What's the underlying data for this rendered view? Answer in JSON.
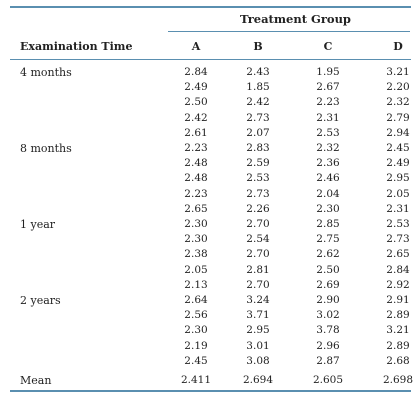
{
  "table": {
    "group_title": "Treatment Group",
    "row_header": "Examination Time",
    "columns": [
      "A",
      "B",
      "C",
      "D"
    ],
    "groups": [
      {
        "label": "4 months",
        "rows": [
          [
            "2.84",
            "2.43",
            "1.95",
            "3.21"
          ],
          [
            "2.49",
            "1.85",
            "2.67",
            "2.20"
          ],
          [
            "2.50",
            "2.42",
            "2.23",
            "2.32"
          ],
          [
            "2.42",
            "2.73",
            "2.31",
            "2.79"
          ],
          [
            "2.61",
            "2.07",
            "2.53",
            "2.94"
          ]
        ]
      },
      {
        "label": "8 months",
        "rows": [
          [
            "2.23",
            "2.83",
            "2.32",
            "2.45"
          ],
          [
            "2.48",
            "2.59",
            "2.36",
            "2.49"
          ],
          [
            "2.48",
            "2.53",
            "2.46",
            "2.95"
          ],
          [
            "2.23",
            "2.73",
            "2.04",
            "2.05"
          ],
          [
            "2.65",
            "2.26",
            "2.30",
            "2.31"
          ]
        ]
      },
      {
        "label": "1 year",
        "rows": [
          [
            "2.30",
            "2.70",
            "2.85",
            "2.53"
          ],
          [
            "2.30",
            "2.54",
            "2.75",
            "2.73"
          ],
          [
            "2.38",
            "2.70",
            "2.62",
            "2.65"
          ],
          [
            "2.05",
            "2.81",
            "2.50",
            "2.84"
          ],
          [
            "2.13",
            "2.70",
            "2.69",
            "2.92"
          ]
        ]
      },
      {
        "label": "2 years",
        "rows": [
          [
            "2.64",
            "3.24",
            "2.90",
            "2.91"
          ],
          [
            "2.56",
            "3.71",
            "3.02",
            "2.89"
          ],
          [
            "2.30",
            "2.95",
            "3.78",
            "3.21"
          ],
          [
            "2.19",
            "3.01",
            "2.96",
            "2.89"
          ],
          [
            "2.45",
            "3.08",
            "2.87",
            "2.68"
          ]
        ]
      }
    ],
    "mean": {
      "label": "Mean",
      "values": [
        "2.411",
        "2.694",
        "2.605",
        "2.698"
      ]
    }
  }
}
